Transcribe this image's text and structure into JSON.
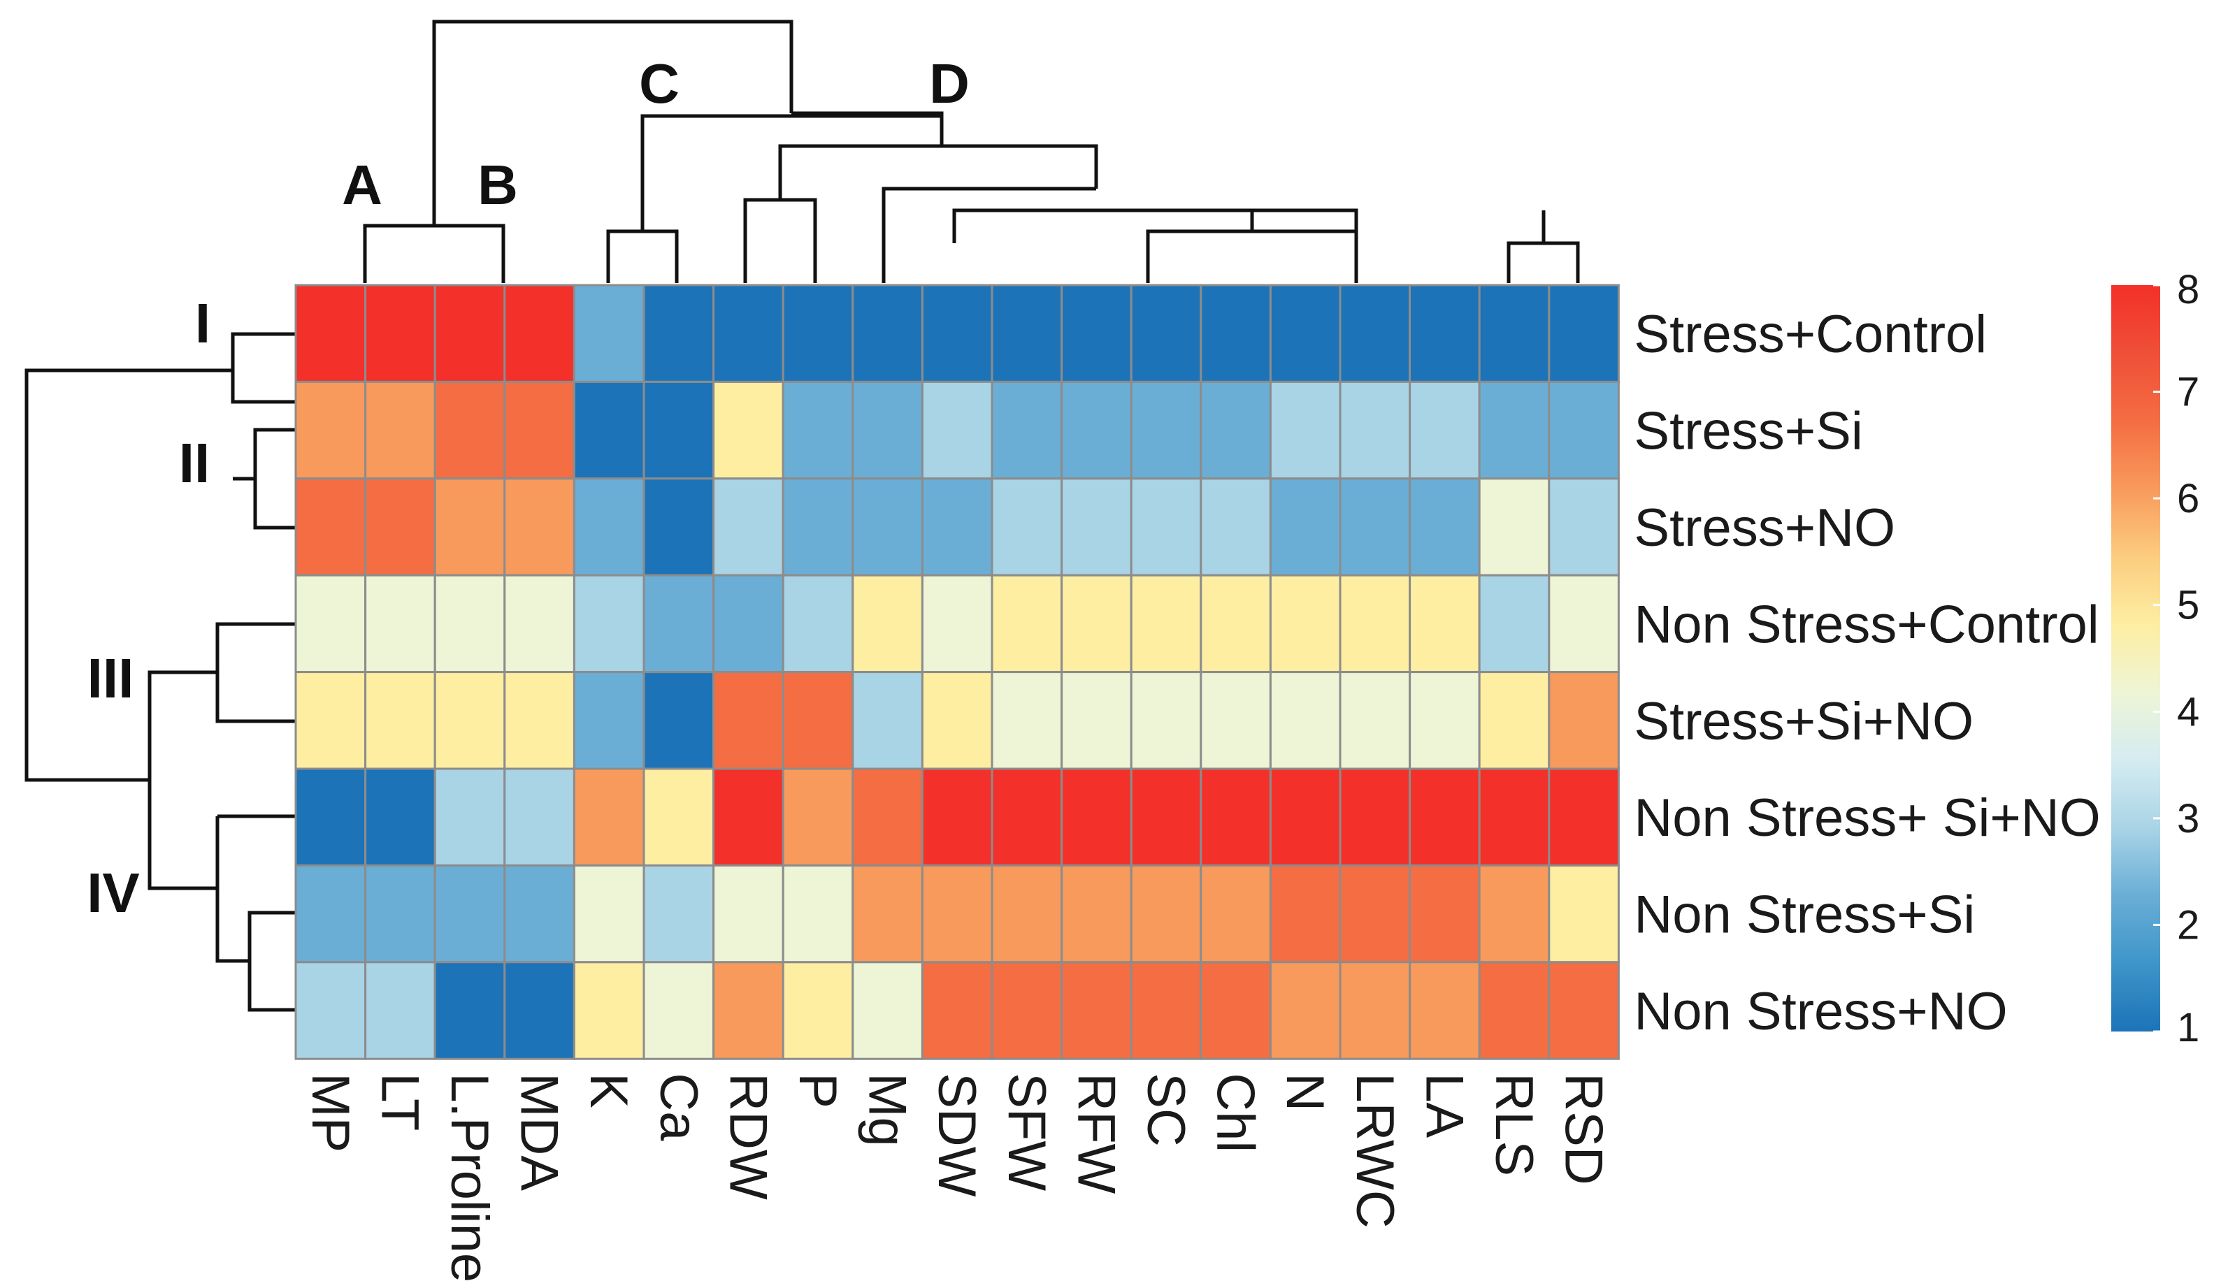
{
  "chart_data": {
    "type": "heatmap",
    "title": "",
    "columns": [
      "MP",
      "LT",
      "L.Proline",
      "MDA",
      "K",
      "Ca",
      "RDW",
      "P",
      "Mg",
      "SDW",
      "SFW",
      "RFW",
      "SC",
      "Chl",
      "N",
      "LRWC",
      "LA",
      "RLS",
      "RSD"
    ],
    "rows": [
      "Stress+Control",
      "Stress+Si",
      "Stress+NO",
      "Non Stress+Control",
      "Stress+Si+NO",
      "Non Stress+ Si+NO",
      "Non Stress+Si",
      "Non Stress+NO"
    ],
    "values": [
      [
        8,
        8,
        8,
        8,
        2.2,
        1,
        1,
        1,
        1,
        1,
        1,
        1,
        1,
        1,
        1,
        1,
        1,
        1,
        1
      ],
      [
        6,
        6,
        7,
        7,
        1,
        1,
        5,
        2,
        2,
        3,
        2,
        2,
        2,
        2,
        3,
        3,
        3,
        2,
        2
      ],
      [
        7,
        7,
        6,
        6,
        2,
        1,
        3,
        2,
        2,
        2,
        3,
        3,
        3,
        3,
        2,
        2,
        2,
        4,
        3
      ],
      [
        4,
        4,
        4,
        4,
        3,
        2,
        2,
        3,
        5,
        4,
        5,
        5,
        5,
        5,
        5,
        5,
        5,
        3,
        4
      ],
      [
        5,
        5,
        5,
        5,
        2,
        1,
        7,
        7,
        3,
        5,
        4,
        4,
        4,
        4,
        4,
        4,
        4,
        5,
        6
      ],
      [
        1,
        1,
        3,
        3,
        6,
        5,
        8,
        6,
        7,
        8,
        8,
        8,
        8,
        8,
        8,
        8,
        8,
        8,
        8
      ],
      [
        2,
        2,
        2,
        2,
        4,
        3,
        4,
        4,
        6,
        6,
        6,
        6,
        6,
        6,
        7,
        7,
        7,
        6,
        5
      ],
      [
        3,
        3,
        1,
        1,
        5,
        4,
        6,
        5,
        4,
        7,
        7,
        7,
        7,
        7,
        6,
        6,
        6,
        7,
        7
      ]
    ],
    "color_scale": {
      "min": 1,
      "max": 8,
      "ticks": [
        "1",
        "2",
        "3",
        "4",
        "5",
        "6",
        "7",
        "8"
      ],
      "colors": [
        "#1c73b7",
        "#3e95c9",
        "#6aaed6",
        "#a9d4e6",
        "#d5ecf1",
        "#eef5d6",
        "#fdeea2",
        "#fccc7f",
        "#f89a5b",
        "#f46d43",
        "#ef4f37",
        "#f3302a"
      ]
    },
    "column_clusters": [
      "A",
      "B",
      "C",
      "D"
    ],
    "row_clusters": [
      "I",
      "II",
      "III",
      "IV"
    ]
  }
}
